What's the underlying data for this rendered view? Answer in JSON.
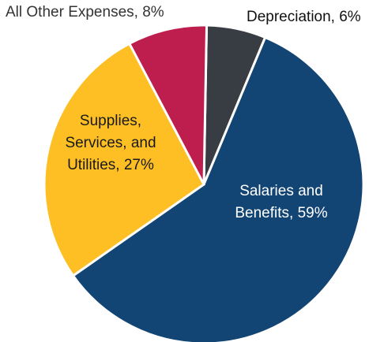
{
  "chart_data": {
    "type": "pie",
    "title": "",
    "slices": [
      {
        "name": "Salaries and Benefits",
        "label_lines": [
          "Salaries and",
          "Benefits, 59%"
        ],
        "value": 59,
        "color": "#134574",
        "label_color": "#ffffff"
      },
      {
        "name": "Supplies, Services, and Utilities",
        "label_lines": [
          "Supplies,",
          "Services, and",
          "Utilities, 27%"
        ],
        "value": 27,
        "color": "#fdbf24",
        "label_color": "#1a1a1a"
      },
      {
        "name": "All Other Expenses",
        "label_lines": [
          "All Other Expenses, 8%"
        ],
        "value": 8,
        "color": "#be1e4d",
        "label_color": "#333333"
      },
      {
        "name": "Depreciation",
        "label_lines": [
          "Depreciation, 6%"
        ],
        "value": 6,
        "color": "#373d42",
        "label_color": "#111111"
      }
    ]
  }
}
